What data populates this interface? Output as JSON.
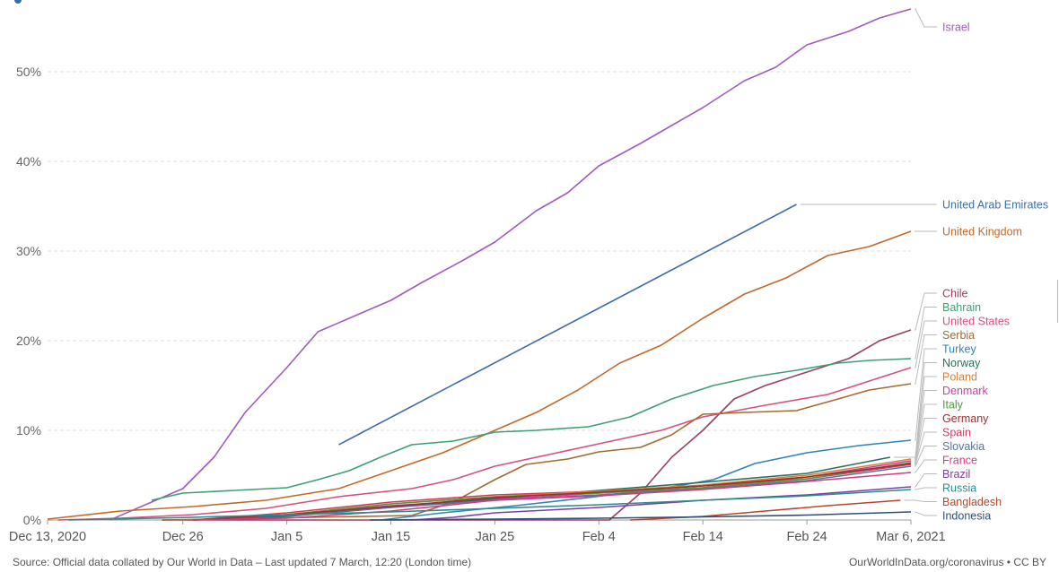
{
  "footer": {
    "source": "Source: Official data collated by Our World in Data – Last updated 7 March, 12:20 (London time)",
    "credit": "OurWorldInData.org/coronavirus • CC BY"
  },
  "chart_data": {
    "type": "line",
    "title": "",
    "xlabel": "",
    "ylabel": "",
    "x_range": [
      "2020-12-13",
      "2021-03-06"
    ],
    "ylim": [
      0,
      58
    ],
    "y_ticks": [
      0,
      10,
      20,
      30,
      40,
      50
    ],
    "y_tick_labels": [
      "0%",
      "10%",
      "20%",
      "30%",
      "40%",
      "50%"
    ],
    "x_ticks": [
      "2020-12-13",
      "2020-12-26",
      "2021-01-05",
      "2021-01-15",
      "2021-01-25",
      "2021-02-04",
      "2021-02-14",
      "2021-02-24",
      "2021-03-06"
    ],
    "x_tick_labels": [
      "Dec 13, 2020",
      "Dec 26",
      "Jan 5",
      "Jan 15",
      "Jan 25",
      "Feb 4",
      "Feb 14",
      "Feb 24",
      "Mar 6, 2021"
    ],
    "grid": "horizontal dashed",
    "legend": "right, labels at line ends",
    "series": [
      {
        "name": "Israel",
        "color": "#a05bbf",
        "points": [
          [
            "2020-12-19",
            0
          ],
          [
            "2020-12-22",
            1.5
          ],
          [
            "2020-12-26",
            3.5
          ],
          [
            "2020-12-29",
            7
          ],
          [
            "2021-01-01",
            12
          ],
          [
            "2021-01-05",
            17
          ],
          [
            "2021-01-08",
            21
          ],
          [
            "2021-01-11",
            22.5
          ],
          [
            "2021-01-15",
            24.5
          ],
          [
            "2021-01-18",
            26.5
          ],
          [
            "2021-01-22",
            29
          ],
          [
            "2021-01-25",
            31
          ],
          [
            "2021-01-29",
            34.5
          ],
          [
            "2021-02-01",
            36.5
          ],
          [
            "2021-02-04",
            39.5
          ],
          [
            "2021-02-08",
            42
          ],
          [
            "2021-02-11",
            44
          ],
          [
            "2021-02-14",
            46
          ],
          [
            "2021-02-18",
            49
          ],
          [
            "2021-02-21",
            50.5
          ],
          [
            "2021-02-24",
            53
          ],
          [
            "2021-02-28",
            54.5
          ],
          [
            "2021-03-03",
            56
          ],
          [
            "2021-03-06",
            57
          ]
        ]
      },
      {
        "name": "United Arab Emirates",
        "color": "#3d6ea8",
        "points": [
          [
            "2021-01-10",
            8.4
          ],
          [
            "2021-02-23",
            35.2
          ]
        ]
      },
      {
        "name": "United Kingdom",
        "color": "#c2692a",
        "points": [
          [
            "2020-12-13",
            0.1
          ],
          [
            "2020-12-20",
            1
          ],
          [
            "2020-12-27",
            1.5
          ],
          [
            "2021-01-03",
            2.2
          ],
          [
            "2021-01-10",
            3.5
          ],
          [
            "2021-01-15",
            5.5
          ],
          [
            "2021-01-20",
            7.5
          ],
          [
            "2021-01-25",
            10
          ],
          [
            "2021-01-29",
            12
          ],
          [
            "2021-02-02",
            14.5
          ],
          [
            "2021-02-06",
            17.5
          ],
          [
            "2021-02-10",
            19.5
          ],
          [
            "2021-02-14",
            22.5
          ],
          [
            "2021-02-18",
            25.2
          ],
          [
            "2021-02-22",
            27
          ],
          [
            "2021-02-26",
            29.5
          ],
          [
            "2021-03-02",
            30.5
          ],
          [
            "2021-03-06",
            32.2
          ]
        ]
      },
      {
        "name": "Chile",
        "color": "#9b3f5e",
        "points": [
          [
            "2020-12-24",
            0
          ],
          [
            "2021-02-05",
            0
          ],
          [
            "2021-02-08",
            3
          ],
          [
            "2021-02-11",
            7
          ],
          [
            "2021-02-14",
            10
          ],
          [
            "2021-02-17",
            13.5
          ],
          [
            "2021-02-20",
            15
          ],
          [
            "2021-02-24",
            16.5
          ],
          [
            "2021-02-28",
            18
          ],
          [
            "2021-03-03",
            20
          ],
          [
            "2021-03-06",
            21.2
          ]
        ]
      },
      {
        "name": "Bahrain",
        "color": "#3f9f74",
        "points": [
          [
            "2020-12-23",
            2.2
          ],
          [
            "2020-12-26",
            3
          ],
          [
            "2020-12-31",
            3.3
          ],
          [
            "2021-01-05",
            3.6
          ],
          [
            "2021-01-08",
            4.5
          ],
          [
            "2021-01-11",
            5.5
          ],
          [
            "2021-01-14",
            7
          ],
          [
            "2021-01-17",
            8.4
          ],
          [
            "2021-01-21",
            8.8
          ],
          [
            "2021-01-25",
            9.8
          ],
          [
            "2021-01-29",
            10
          ],
          [
            "2021-02-03",
            10.4
          ],
          [
            "2021-02-07",
            11.5
          ],
          [
            "2021-02-11",
            13.5
          ],
          [
            "2021-02-15",
            15
          ],
          [
            "2021-02-19",
            16
          ],
          [
            "2021-02-23",
            16.7
          ],
          [
            "2021-02-27",
            17.5
          ],
          [
            "2021-03-02",
            17.8
          ],
          [
            "2021-03-06",
            18
          ]
        ]
      },
      {
        "name": "United States",
        "color": "#d6507c",
        "points": [
          [
            "2020-12-14",
            0
          ],
          [
            "2020-12-20",
            0.2
          ],
          [
            "2020-12-27",
            0.6
          ],
          [
            "2021-01-03",
            1.3
          ],
          [
            "2021-01-10",
            2.6
          ],
          [
            "2021-01-17",
            3.5
          ],
          [
            "2021-01-21",
            4.5
          ],
          [
            "2021-01-25",
            6
          ],
          [
            "2021-01-31",
            7.5
          ],
          [
            "2021-02-04",
            8.5
          ],
          [
            "2021-02-10",
            10
          ],
          [
            "2021-02-14",
            11.5
          ],
          [
            "2021-02-20",
            12.8
          ],
          [
            "2021-02-26",
            14
          ],
          [
            "2021-03-02",
            15.5
          ],
          [
            "2021-03-06",
            17
          ]
        ]
      },
      {
        "name": "Serbia",
        "color": "#a56a2e",
        "points": [
          [
            "2020-12-24",
            0
          ],
          [
            "2021-01-17",
            0.5
          ],
          [
            "2021-01-21",
            2
          ],
          [
            "2021-01-25",
            4.5
          ],
          [
            "2021-01-28",
            6.2
          ],
          [
            "2021-02-01",
            6.8
          ],
          [
            "2021-02-04",
            7.6
          ],
          [
            "2021-02-08",
            8.1
          ],
          [
            "2021-02-11",
            9.5
          ],
          [
            "2021-02-14",
            11.8
          ],
          [
            "2021-02-18",
            12
          ],
          [
            "2021-02-23",
            12.2
          ],
          [
            "2021-02-27",
            13.5
          ],
          [
            "2021-03-02",
            14.5
          ],
          [
            "2021-03-06",
            15.2
          ]
        ]
      },
      {
        "name": "Turkey",
        "color": "#2e86b5",
        "points": [
          [
            "2021-01-14",
            0
          ],
          [
            "2021-01-20",
            0.8
          ],
          [
            "2021-01-27",
            1.6
          ],
          [
            "2021-02-03",
            2.5
          ],
          [
            "2021-02-10",
            3.5
          ],
          [
            "2021-02-15",
            4.5
          ],
          [
            "2021-02-19",
            6.3
          ],
          [
            "2021-02-24",
            7.5
          ],
          [
            "2021-03-01",
            8.3
          ],
          [
            "2021-03-06",
            8.9
          ]
        ]
      },
      {
        "name": "Denmark",
        "color": "#c93f9b",
        "points": [
          [
            "2020-12-27",
            0
          ],
          [
            "2021-01-05",
            0.6
          ],
          [
            "2021-01-15",
            1.6
          ],
          [
            "2021-01-25",
            2.3
          ],
          [
            "2021-02-04",
            3
          ],
          [
            "2021-02-14",
            3.6
          ],
          [
            "2021-02-24",
            4.8
          ],
          [
            "2021-03-06",
            6.6
          ]
        ]
      },
      {
        "name": "Norway",
        "color": "#2a6f5e",
        "points": [
          [
            "2020-12-27",
            0
          ],
          [
            "2021-01-05",
            0.4
          ],
          [
            "2021-01-15",
            1.4
          ],
          [
            "2021-01-25",
            2.4
          ],
          [
            "2021-02-04",
            3.3
          ],
          [
            "2021-02-14",
            4.2
          ],
          [
            "2021-02-24",
            5.2
          ],
          [
            "2021-03-04",
            7
          ]
        ]
      },
      {
        "name": "Spain",
        "color": "#d63a5b",
        "points": [
          [
            "2020-12-27",
            0
          ],
          [
            "2021-01-05",
            0.8
          ],
          [
            "2021-01-15",
            2
          ],
          [
            "2021-01-25",
            2.8
          ],
          [
            "2021-02-04",
            3.2
          ],
          [
            "2021-02-14",
            3.8
          ],
          [
            "2021-02-24",
            4.6
          ],
          [
            "2021-03-06",
            6.2
          ]
        ]
      },
      {
        "name": "Poland",
        "color": "#d97f3a",
        "points": [
          [
            "2020-12-27",
            0
          ],
          [
            "2021-01-05",
            0.6
          ],
          [
            "2021-01-15",
            1.8
          ],
          [
            "2021-01-25",
            2.6
          ],
          [
            "2021-02-04",
            3.2
          ],
          [
            "2021-02-14",
            3.9
          ],
          [
            "2021-02-24",
            5
          ],
          [
            "2021-03-06",
            6.8
          ]
        ]
      },
      {
        "name": "Slovakia",
        "color": "#5573a6",
        "points": [
          [
            "2020-12-27",
            0
          ],
          [
            "2021-01-05",
            0.5
          ],
          [
            "2021-01-15",
            1.4
          ],
          [
            "2021-01-25",
            2.2
          ],
          [
            "2021-02-04",
            2.8
          ],
          [
            "2021-02-14",
            3.5
          ],
          [
            "2021-02-24",
            4.4
          ],
          [
            "2021-03-06",
            6
          ]
        ]
      },
      {
        "name": "Italy",
        "color": "#4f9a3c",
        "points": [
          [
            "2020-12-27",
            0
          ],
          [
            "2021-01-05",
            0.6
          ],
          [
            "2021-01-15",
            1.8
          ],
          [
            "2021-01-25",
            2.6
          ],
          [
            "2021-02-04",
            3
          ],
          [
            "2021-02-14",
            3.6
          ],
          [
            "2021-02-24",
            4.6
          ],
          [
            "2021-03-06",
            6.4
          ]
        ]
      },
      {
        "name": "Germany",
        "color": "#9c2f2f",
        "points": [
          [
            "2020-12-27",
            0
          ],
          [
            "2021-01-05",
            0.6
          ],
          [
            "2021-01-15",
            1.5
          ],
          [
            "2021-01-25",
            2.5
          ],
          [
            "2021-02-04",
            3.1
          ],
          [
            "2021-02-14",
            3.8
          ],
          [
            "2021-02-24",
            4.8
          ],
          [
            "2021-03-06",
            6.3
          ]
        ]
      },
      {
        "name": "France",
        "color": "#d63a7e",
        "points": [
          [
            "2020-12-27",
            0
          ],
          [
            "2021-01-05",
            0.2
          ],
          [
            "2021-01-15",
            1
          ],
          [
            "2021-01-25",
            2.2
          ],
          [
            "2021-02-04",
            2.7
          ],
          [
            "2021-02-14",
            3.4
          ],
          [
            "2021-02-24",
            4.3
          ],
          [
            "2021-03-06",
            5.3
          ]
        ]
      },
      {
        "name": "Brazil",
        "color": "#7d3fa6",
        "points": [
          [
            "2021-01-17",
            0
          ],
          [
            "2021-01-21",
            0.3
          ],
          [
            "2021-01-25",
            0.8
          ],
          [
            "2021-02-04",
            1.4
          ],
          [
            "2021-02-14",
            2.2
          ],
          [
            "2021-02-24",
            2.8
          ],
          [
            "2021-03-06",
            3.7
          ]
        ]
      },
      {
        "name": "Russia",
        "color": "#2a8c8c",
        "points": [
          [
            "2020-12-15",
            0
          ],
          [
            "2020-12-27",
            0.3
          ],
          [
            "2021-01-05",
            0.6
          ],
          [
            "2021-01-15",
            0.9
          ],
          [
            "2021-01-25",
            1.3
          ],
          [
            "2021-02-04",
            1.7
          ],
          [
            "2021-02-14",
            2.2
          ],
          [
            "2021-02-24",
            2.7
          ],
          [
            "2021-03-06",
            3.4
          ]
        ]
      },
      {
        "name": "Bangladesh",
        "color": "#b5482a",
        "points": [
          [
            "2021-02-07",
            0
          ],
          [
            "2021-02-14",
            0.4
          ],
          [
            "2021-02-20",
            1
          ],
          [
            "2021-02-26",
            1.6
          ],
          [
            "2021-03-05",
            2.2
          ]
        ]
      },
      {
        "name": "Indonesia",
        "color": "#2f4f7a",
        "points": [
          [
            "2021-01-13",
            0
          ],
          [
            "2021-01-25",
            0.1
          ],
          [
            "2021-02-04",
            0.2
          ],
          [
            "2021-02-14",
            0.35
          ],
          [
            "2021-02-24",
            0.55
          ],
          [
            "2021-03-06",
            0.9
          ]
        ]
      }
    ]
  }
}
